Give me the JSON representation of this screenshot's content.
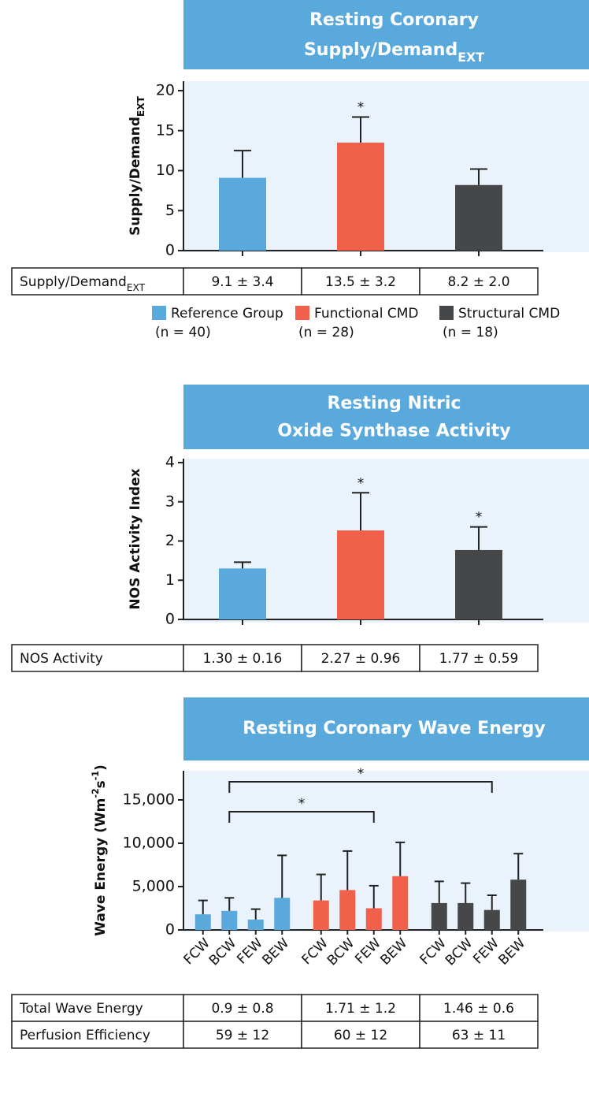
{
  "legend": [
    {
      "name": "Reference Group",
      "n": "(n = 40)",
      "color": "#5aa9dc"
    },
    {
      "name": "Functional CMD",
      "n": "(n = 28)",
      "color": "#f0604b"
    },
    {
      "name": "Structural CMD",
      "n": "(n = 18)",
      "color": "#464749"
    }
  ],
  "chart_data": [
    {
      "type": "bar",
      "title": [
        "Resting Coronary",
        [
          "Supply/Demand",
          {
            "sub": "EXT"
          }
        ]
      ],
      "ylabel": [
        "Supply/Demand",
        {
          "sub": "EXT"
        }
      ],
      "categories": [
        null,
        null,
        null
      ],
      "values": [
        9.1,
        13.5,
        8.2
      ],
      "errors": [
        3.4,
        3.2,
        2.0
      ],
      "significance": [
        null,
        "*",
        null
      ],
      "ylim": [
        0,
        20
      ],
      "yticks": [
        0,
        5,
        10,
        15,
        20
      ],
      "table": {
        "rows": [
          [
            [
              "Supply/Demand",
              {
                "sub": "EXT"
              }
            ],
            "9.1 ± 3.4",
            "13.5 ± 3.2",
            "8.2 ± 2.0"
          ]
        ]
      }
    },
    {
      "type": "bar",
      "title": [
        "Resting Nitric",
        "Oxide Synthase Activity"
      ],
      "ylabel": "NOS Activity Index",
      "categories": [
        null,
        null,
        null
      ],
      "values": [
        1.3,
        2.27,
        1.77
      ],
      "errors": [
        0.16,
        0.96,
        0.59
      ],
      "significance": [
        null,
        "*",
        "*"
      ],
      "ylim": [
        0,
        4
      ],
      "yticks": [
        0,
        1,
        2,
        3,
        4
      ],
      "table": {
        "rows": [
          [
            "NOS Activity",
            "1.30 ± 0.16",
            "2.27 ± 0.96",
            "1.77 ± 0.59"
          ]
        ]
      }
    },
    {
      "type": "grouped_bar",
      "title": [
        "Resting Coronary Wave Energy"
      ],
      "ylabel": [
        "Wave Energy (Wm",
        {
          "sup": "-2"
        },
        "s",
        {
          "sup": "-1"
        },
        ")"
      ],
      "categories": [
        "FCW",
        "BCW",
        "FEW",
        "BEW"
      ],
      "series": [
        {
          "values": [
            1800,
            2200,
            1200,
            3700
          ],
          "errors": [
            1600,
            1500,
            1200,
            4900
          ]
        },
        {
          "values": [
            3400,
            4600,
            2500,
            6200
          ],
          "errors": [
            3000,
            4500,
            2600,
            3900
          ]
        },
        {
          "values": [
            3100,
            3100,
            2300,
            5800
          ],
          "errors": [
            2500,
            2300,
            1700,
            3000
          ]
        }
      ],
      "annotations": [
        "*",
        "*"
      ],
      "ylim": [
        0,
        18000
      ],
      "yticks": [
        0,
        {
          "value": 5000,
          "label": "5,000"
        },
        {
          "value": 10000,
          "label": "10,000"
        },
        {
          "value": 15000,
          "label": "15,000"
        }
      ],
      "table": {
        "rows": [
          [
            "Total Wave Energy",
            "0.9 ± 0.8",
            "1.71 ± 1.2",
            "1.46 ± 0.6"
          ],
          [
            "Perfusion Efficiency",
            "59 ± 12",
            "60 ± 12",
            "63 ± 11"
          ]
        ]
      }
    }
  ]
}
